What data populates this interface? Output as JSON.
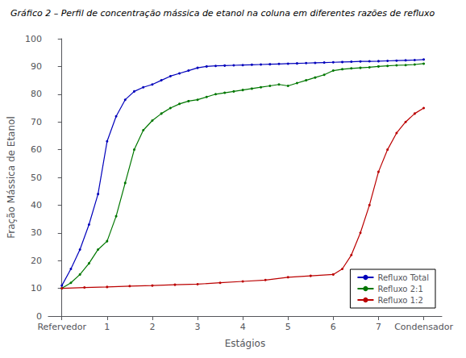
{
  "chart_data": {
    "type": "line",
    "title": "Gráfico 2 – Perfil de concentração mássica de etanol na coluna em diferentes razões de refluxo",
    "x_label": "Estágios",
    "y_label": "Fração Mássica de Etanol",
    "xlim": [
      -0.3,
      8.4
    ],
    "xticks": [
      {
        "value": 0,
        "label": "Refervedor"
      },
      1,
      2,
      3,
      4,
      5,
      6,
      7,
      {
        "value": 8,
        "label": "Condensador"
      }
    ],
    "ylim": [
      0,
      100
    ],
    "yticks": [
      0,
      10,
      20,
      30,
      40,
      50,
      60,
      70,
      80,
      90,
      100
    ],
    "grid": false,
    "legend": "lower right",
    "marker": "point",
    "series": [
      {
        "name": "Refluxo Total",
        "color": "#0000BB",
        "x": [
          0,
          0.2,
          0.4,
          0.6,
          0.8,
          1.0,
          1.2,
          1.4,
          1.6,
          1.8,
          2.0,
          2.2,
          2.4,
          2.6,
          2.8,
          3.0,
          3.2,
          3.4,
          3.6,
          3.8,
          4.0,
          4.2,
          4.4,
          4.6,
          4.8,
          5.0,
          5.2,
          5.4,
          5.6,
          5.8,
          6.0,
          6.2,
          6.4,
          6.6,
          6.8,
          7.0,
          7.2,
          7.4,
          7.6,
          7.8,
          8.0
        ],
        "values": [
          11,
          17,
          24,
          33,
          44,
          63,
          72,
          78,
          81,
          82.5,
          83.5,
          85,
          86.5,
          87.5,
          88.5,
          89.5,
          90.0,
          90.2,
          90.3,
          90.4,
          90.5,
          90.6,
          90.7,
          90.8,
          90.9,
          91.0,
          91.1,
          91.2,
          91.3,
          91.4,
          91.5,
          91.6,
          91.7,
          91.8,
          91.85,
          91.9,
          92.0,
          92.1,
          92.2,
          92.3,
          92.5
        ]
      },
      {
        "name": "Refluxo 2:1",
        "color": "#007700",
        "x": [
          0,
          0.2,
          0.4,
          0.6,
          0.8,
          1.0,
          1.2,
          1.4,
          1.6,
          1.8,
          2.0,
          2.2,
          2.4,
          2.6,
          2.8,
          3.0,
          3.2,
          3.4,
          3.6,
          3.8,
          4.0,
          4.2,
          4.4,
          4.6,
          4.8,
          5.0,
          5.2,
          5.4,
          5.6,
          5.8,
          6.0,
          6.2,
          6.4,
          6.6,
          6.8,
          7.0,
          7.2,
          7.4,
          7.6,
          7.8,
          8.0
        ],
        "values": [
          10,
          12,
          15,
          19,
          24,
          27,
          36,
          48,
          60,
          67,
          70.5,
          73,
          75,
          76.5,
          77.5,
          78,
          79,
          80,
          80.5,
          81,
          81.5,
          82,
          82.5,
          83,
          83.5,
          83,
          84,
          85,
          86,
          87,
          88.5,
          89,
          89.3,
          89.5,
          89.7,
          90.0,
          90.2,
          90.4,
          90.5,
          90.7,
          91.0
        ]
      },
      {
        "name": "Refluxo 1:2",
        "color": "#BB0000",
        "x": [
          0,
          0.5,
          1.0,
          1.5,
          2.0,
          2.5,
          3.0,
          3.5,
          4.0,
          4.5,
          5.0,
          5.5,
          6.0,
          6.2,
          6.4,
          6.6,
          6.8,
          7.0,
          7.2,
          7.4,
          7.6,
          7.8,
          8.0
        ],
        "values": [
          10,
          10.3,
          10.5,
          10.8,
          11.0,
          11.3,
          11.5,
          12.0,
          12.5,
          13.0,
          14.0,
          14.5,
          15.0,
          17.0,
          22.0,
          30.0,
          40.0,
          52.0,
          60.0,
          66.0,
          70.0,
          73.0,
          75.0
        ]
      }
    ]
  }
}
